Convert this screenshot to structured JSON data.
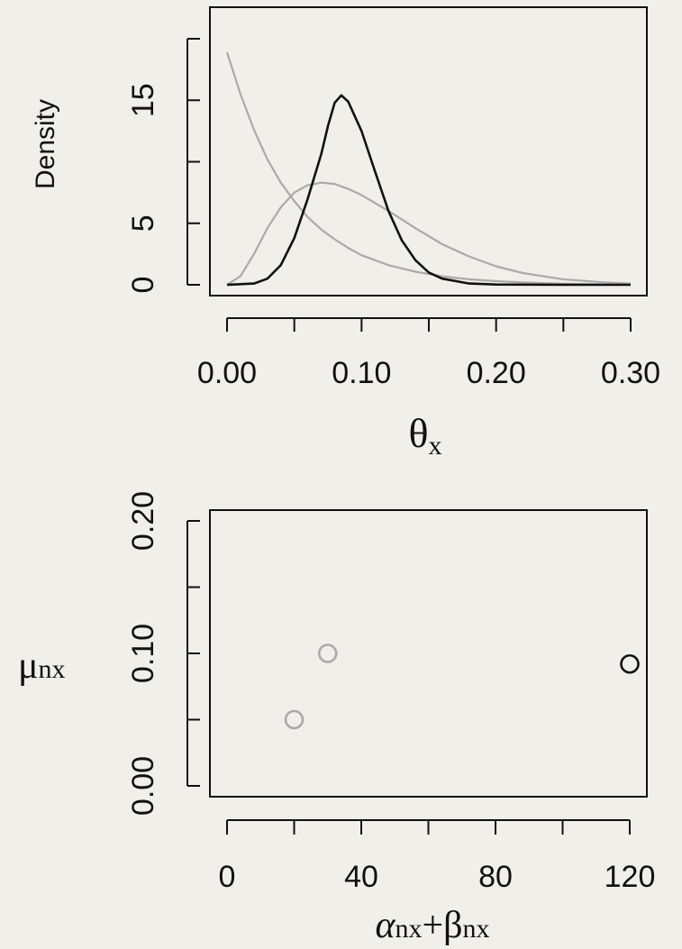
{
  "chart_data": [
    {
      "type": "line",
      "xlabel": "θx",
      "xlabel_main": "θ",
      "xlabel_sub": "x",
      "ylabel": "Density",
      "xlim": [
        0,
        0.3
      ],
      "ylim": [
        0,
        20
      ],
      "x_ticks": [
        0.0,
        0.05,
        0.1,
        0.15,
        0.2,
        0.25,
        0.3
      ],
      "x_tick_labels": [
        {
          "value": 0.0,
          "label": "0.00"
        },
        {
          "value": 0.1,
          "label": "0.10"
        },
        {
          "value": 0.2,
          "label": "0.20"
        },
        {
          "value": 0.3,
          "label": "0.30"
        }
      ],
      "y_ticks": [
        0,
        5,
        10,
        15,
        20
      ],
      "y_tick_labels": [
        {
          "value": 0,
          "label": "0"
        },
        {
          "value": 5,
          "label": "5"
        },
        {
          "value": 15,
          "label": "15"
        }
      ],
      "series": [
        {
          "color": "#aaaaaa",
          "x": [
            0.0,
            0.01,
            0.02,
            0.03,
            0.04,
            0.05,
            0.06,
            0.07,
            0.08,
            0.09,
            0.1,
            0.12,
            0.14,
            0.16,
            0.18,
            0.2,
            0.22,
            0.25,
            0.28,
            0.3
          ],
          "y": [
            18.9,
            15.5,
            12.6,
            10.2,
            8.3,
            6.8,
            5.5,
            4.5,
            3.7,
            3.0,
            2.4,
            1.6,
            1.06,
            0.69,
            0.45,
            0.29,
            0.19,
            0.09,
            0.04,
            0.02
          ]
        },
        {
          "color": "#aaaaaa",
          "x": [
            0.0,
            0.01,
            0.02,
            0.03,
            0.04,
            0.05,
            0.06,
            0.07,
            0.08,
            0.09,
            0.1,
            0.12,
            0.14,
            0.16,
            0.18,
            0.2,
            0.22,
            0.25,
            0.28,
            0.3
          ],
          "y": [
            0.0,
            0.7,
            2.5,
            4.6,
            6.3,
            7.5,
            8.1,
            8.3,
            8.2,
            7.8,
            7.3,
            6.0,
            4.6,
            3.3,
            2.3,
            1.5,
            0.95,
            0.45,
            0.2,
            0.1
          ]
        },
        {
          "color": "#111111",
          "x": [
            0.0,
            0.02,
            0.03,
            0.04,
            0.05,
            0.06,
            0.07,
            0.075,
            0.08,
            0.085,
            0.09,
            0.1,
            0.11,
            0.12,
            0.13,
            0.14,
            0.15,
            0.16,
            0.18,
            0.2,
            0.25,
            0.3
          ],
          "y": [
            0.0,
            0.1,
            0.5,
            1.6,
            3.8,
            7.0,
            10.6,
            12.9,
            14.8,
            15.4,
            14.9,
            12.5,
            9.2,
            6.0,
            3.6,
            2.0,
            1.0,
            0.5,
            0.1,
            0.02,
            0.0,
            0.0
          ]
        }
      ]
    },
    {
      "type": "scatter",
      "xlabel": "αnx+βnx",
      "xlabel_parts": {
        "alpha": "α",
        "alpha_sub": "nx",
        "plus": "+",
        "beta": "β",
        "beta_sub": "nx"
      },
      "ylabel": "μnx",
      "ylabel_parts": {
        "mu": "μ",
        "mu_sub": "nx"
      },
      "xlim": [
        0,
        120
      ],
      "ylim": [
        0,
        0.2
      ],
      "x_ticks": [
        0,
        20,
        40,
        60,
        80,
        100,
        120
      ],
      "x_tick_labels": [
        {
          "value": 0,
          "label": "0"
        },
        {
          "value": 40,
          "label": "40"
        },
        {
          "value": 80,
          "label": "80"
        },
        {
          "value": 120,
          "label": "120"
        }
      ],
      "y_ticks": [
        0.0,
        0.05,
        0.1,
        0.15,
        0.2
      ],
      "y_tick_labels": [
        {
          "value": 0.0,
          "label": "0.00"
        },
        {
          "value": 0.1,
          "label": "0.10"
        },
        {
          "value": 0.2,
          "label": "0.20"
        }
      ],
      "points": [
        {
          "x": 20,
          "y": 0.05,
          "color": "#aaaaaa"
        },
        {
          "x": 30,
          "y": 0.1,
          "color": "#aaaaaa"
        },
        {
          "x": 120,
          "y": 0.092,
          "color": "#111111"
        }
      ]
    }
  ]
}
